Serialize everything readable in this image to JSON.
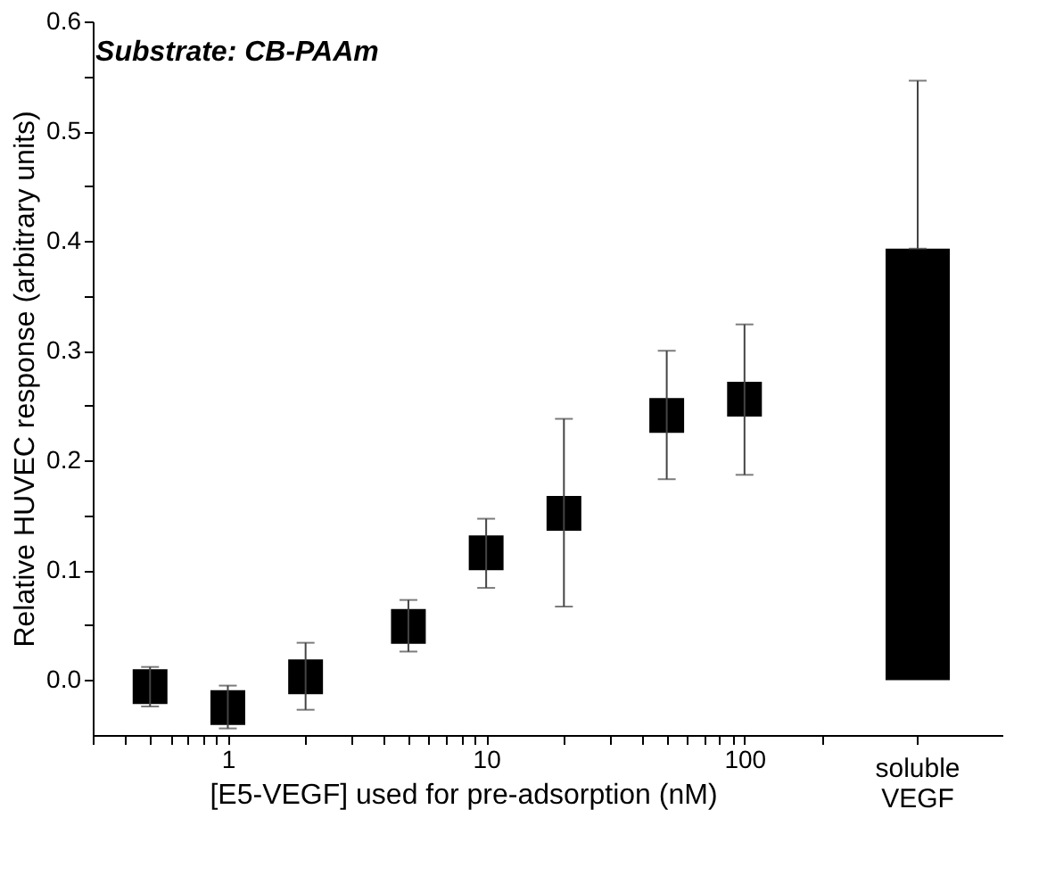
{
  "chart_data": [
    {
      "type": "scatter",
      "title": "Substrate: CB-PAAm",
      "xlabel": "[E5-VEGF] used for pre-adsorption (nM)",
      "ylabel": "Relative HUVEC response (arbitrary units)",
      "log": "x",
      "marker": "square",
      "grid": false,
      "x": [
        0.5,
        1,
        2,
        5,
        10,
        20,
        50,
        100
      ],
      "series": [
        {
          "color": "#000000",
          "values": [
            -0.006,
            -0.025,
            0.003,
            0.049,
            0.116,
            0.152,
            0.241,
            0.256
          ],
          "errors": [
            [
              -0.024,
              0.012
            ],
            [
              -0.044,
              -0.005
            ],
            [
              -0.027,
              0.034
            ],
            [
              0.026,
              0.073
            ],
            [
              0.084,
              0.147
            ],
            [
              0.067,
              0.238
            ],
            [
              0.183,
              0.3
            ],
            [
              0.187,
              0.324
            ]
          ]
        }
      ],
      "xlim": [
        0.3,
        220
      ],
      "xticks": [
        {
          "value": 0.3,
          "label": null
        },
        {
          "value": 0.4,
          "label": null
        },
        {
          "value": 0.5,
          "label": null
        },
        {
          "value": 0.6,
          "label": null
        },
        {
          "value": 0.7,
          "label": null
        },
        {
          "value": 0.8,
          "label": null
        },
        {
          "value": 0.9,
          "label": null
        },
        1,
        {
          "value": 2,
          "label": null
        },
        {
          "value": 3,
          "label": null
        },
        {
          "value": 4,
          "label": null
        },
        {
          "value": 5,
          "label": null
        },
        {
          "value": 6,
          "label": null
        },
        {
          "value": 7,
          "label": null
        },
        {
          "value": 8,
          "label": null
        },
        {
          "value": 9,
          "label": null
        },
        10,
        {
          "value": 20,
          "label": null
        },
        {
          "value": 30,
          "label": null
        },
        {
          "value": 40,
          "label": null
        },
        {
          "value": 50,
          "label": null
        },
        {
          "value": 60,
          "label": null
        },
        {
          "value": 70,
          "label": null
        },
        {
          "value": 80,
          "label": null
        },
        {
          "value": 90,
          "label": null
        },
        100,
        {
          "value": 200,
          "label": null
        }
      ],
      "ylim": [
        -0.05,
        0.6
      ],
      "yticks": [
        {
          "value": 0,
          "label": "0.0"
        },
        {
          "value": 0.05,
          "label": null
        },
        0.1,
        {
          "value": 0.15,
          "label": null
        },
        0.2,
        {
          "value": 0.25,
          "label": null
        },
        0.3,
        {
          "value": 0.35,
          "label": null
        },
        0.4,
        {
          "value": 0.45,
          "label": null
        },
        0.5,
        {
          "value": 0.55,
          "label": null
        },
        0.6
      ]
    },
    {
      "type": "bar",
      "categories": [
        "soluble VEGF"
      ],
      "values": [
        0.393
      ],
      "errors": [
        [
          0.393,
          0.546
        ]
      ],
      "color": "#000000",
      "ylim": [
        -0.05,
        0.6
      ],
      "tick_labels": "x",
      "grid": false
    }
  ]
}
